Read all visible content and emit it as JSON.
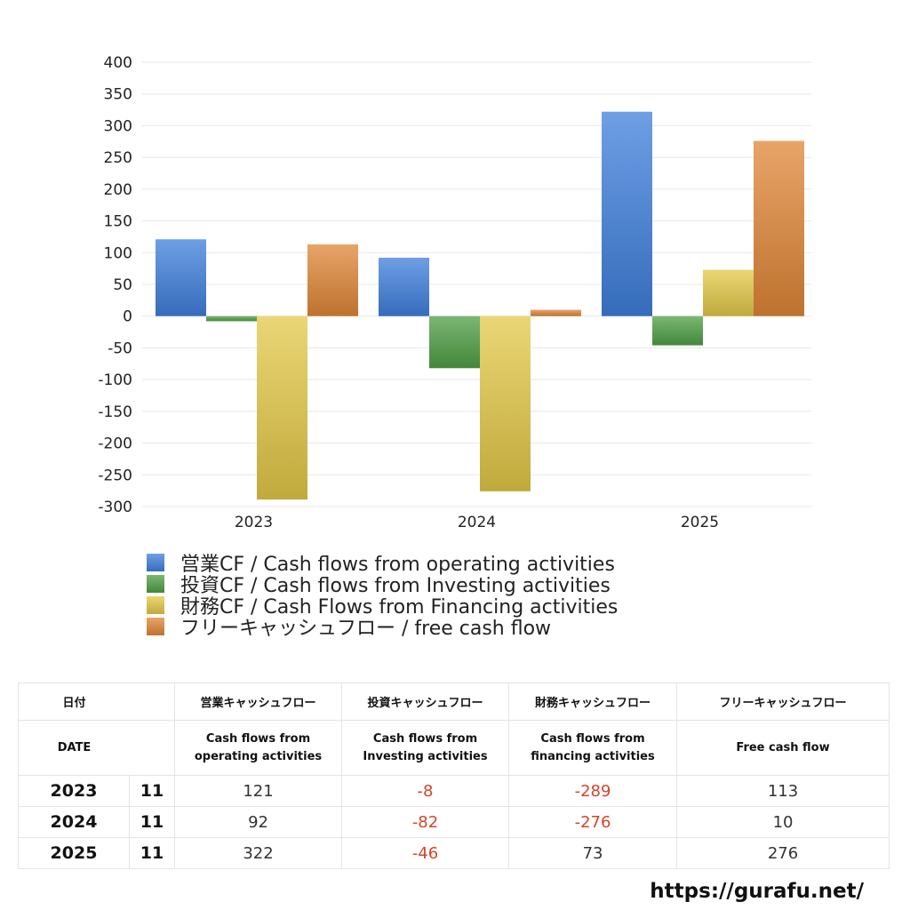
{
  "chart_data": {
    "type": "bar",
    "categories": [
      "2023",
      "2024",
      "2025"
    ],
    "series": [
      {
        "name": "営業CF / Cash flows from operating activities",
        "values": [
          121,
          92,
          322
        ],
        "color": "#3e7fdc"
      },
      {
        "name": "投資CF / Cash flows from Investing activities",
        "values": [
          -8,
          -82,
          -46
        ],
        "color": "#4f9f45"
      },
      {
        "name": "財務CF / Cash Flows from Financing activities",
        "values": [
          -289,
          -276,
          73
        ],
        "color": "#e3c847"
      },
      {
        "name": "フリーキャッシュフロー / free cash flow",
        "values": [
          113,
          10,
          276
        ],
        "color": "#e08636"
      }
    ],
    "yticks": [
      "400",
      "350",
      "300",
      "250",
      "200",
      "150",
      "100",
      "50",
      "0",
      "-50",
      "-100",
      "-150",
      "-200",
      "-250",
      "-300"
    ],
    "ylim": [
      -300,
      400
    ],
    "grid": true,
    "legend_position": "bottom-left"
  },
  "table": {
    "header_jp": {
      "date": "日付",
      "operating": "営業キャッシュフロー",
      "investing": "投資キャッシュフロー",
      "financing": "財務キャッシュフロー",
      "free": "フリーキャッシュフロー"
    },
    "header_en": {
      "date": "DATE",
      "operating_1": "Cash flows from",
      "operating_2": "operating activities",
      "investing_1": "Cash flows from",
      "investing_2": "Investing activities",
      "financing_1": "Cash flows from",
      "financing_2": "financing activities",
      "free": "Free cash flow"
    },
    "rows": [
      {
        "year": "2023",
        "month": "11",
        "operating": "121",
        "investing": "-8",
        "financing": "-289",
        "free": "113"
      },
      {
        "year": "2024",
        "month": "11",
        "operating": "92",
        "investing": "-82",
        "financing": "-276",
        "free": "10"
      },
      {
        "year": "2025",
        "month": "11",
        "operating": "322",
        "investing": "-46",
        "financing": "73",
        "free": "276"
      }
    ]
  },
  "footer": {
    "url": "https://gurafu.net/"
  }
}
